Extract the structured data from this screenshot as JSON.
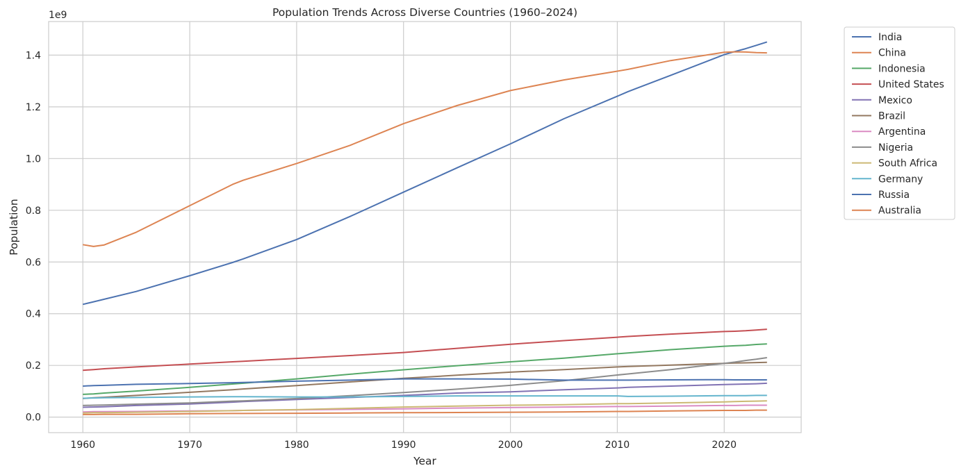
{
  "chart_data": {
    "type": "line",
    "title": "Population Trends Across Diverse Countries (1960–2024)",
    "xlabel": "Year",
    "ylabel": "Population",
    "y_scale_label": "1e9",
    "xlim": [
      1956.8,
      2027.2
    ],
    "ylim": [
      -0.06,
      1.53
    ],
    "xticks": [
      1960,
      1970,
      1980,
      1990,
      2000,
      2010,
      2020
    ],
    "yticks": [
      "0.0",
      "0.2",
      "0.4",
      "0.6",
      "0.8",
      "1.0",
      "1.2",
      "1.4"
    ],
    "grid": true,
    "legend_position": "outside upper right",
    "x": [
      1960,
      1961,
      1962,
      1965,
      1970,
      1974,
      1975,
      1980,
      1985,
      1990,
      1995,
      2000,
      2005,
      2010,
      2011,
      2015,
      2020,
      2021,
      2022,
      2023,
      2024
    ],
    "series": [
      {
        "name": "India",
        "color": "#4c72b0",
        "values": [
          0.436,
          0.446,
          0.456,
          0.486,
          0.547,
          0.598,
          0.612,
          0.687,
          0.776,
          0.87,
          0.964,
          1.057,
          1.154,
          1.241,
          1.259,
          1.322,
          1.402,
          1.414,
          1.425,
          1.438,
          1.451
        ]
      },
      {
        "name": "China",
        "color": "#dd8452",
        "values": [
          0.667,
          0.66,
          0.666,
          0.715,
          0.818,
          0.9,
          0.916,
          0.981,
          1.051,
          1.135,
          1.205,
          1.263,
          1.304,
          1.338,
          1.345,
          1.379,
          1.411,
          1.413,
          1.412,
          1.41,
          1.409
        ]
      },
      {
        "name": "Indonesia",
        "color": "#55a868",
        "values": [
          0.088,
          0.09,
          0.093,
          0.101,
          0.115,
          0.128,
          0.131,
          0.148,
          0.166,
          0.183,
          0.199,
          0.214,
          0.228,
          0.245,
          0.248,
          0.261,
          0.274,
          0.276,
          0.278,
          0.281,
          0.283
        ]
      },
      {
        "name": "United States",
        "color": "#c44e52",
        "values": [
          0.181,
          0.184,
          0.187,
          0.194,
          0.205,
          0.214,
          0.216,
          0.227,
          0.238,
          0.25,
          0.266,
          0.282,
          0.296,
          0.309,
          0.312,
          0.321,
          0.331,
          0.332,
          0.334,
          0.337,
          0.34
        ]
      },
      {
        "name": "Mexico",
        "color": "#8172b3",
        "values": [
          0.038,
          0.039,
          0.04,
          0.045,
          0.051,
          0.058,
          0.06,
          0.068,
          0.076,
          0.084,
          0.093,
          0.098,
          0.106,
          0.113,
          0.115,
          0.12,
          0.126,
          0.127,
          0.128,
          0.129,
          0.131
        ]
      },
      {
        "name": "Brazil",
        "color": "#937860",
        "values": [
          0.072,
          0.075,
          0.077,
          0.084,
          0.096,
          0.106,
          0.109,
          0.122,
          0.136,
          0.15,
          0.162,
          0.174,
          0.184,
          0.194,
          0.196,
          0.201,
          0.208,
          0.209,
          0.21,
          0.211,
          0.212
        ]
      },
      {
        "name": "Argentina",
        "color": "#da8bc3",
        "values": [
          0.02,
          0.021,
          0.021,
          0.022,
          0.024,
          0.025,
          0.026,
          0.028,
          0.03,
          0.032,
          0.035,
          0.037,
          0.039,
          0.041,
          0.041,
          0.043,
          0.045,
          0.045,
          0.046,
          0.046,
          0.046
        ]
      },
      {
        "name": "Nigeria",
        "color": "#8c8c8c",
        "values": [
          0.045,
          0.046,
          0.047,
          0.05,
          0.055,
          0.062,
          0.063,
          0.072,
          0.083,
          0.095,
          0.108,
          0.123,
          0.141,
          0.163,
          0.167,
          0.184,
          0.208,
          0.213,
          0.219,
          0.224,
          0.23
        ]
      },
      {
        "name": "South Africa",
        "color": "#ccb974",
        "values": [
          0.016,
          0.017,
          0.017,
          0.019,
          0.022,
          0.025,
          0.026,
          0.029,
          0.034,
          0.039,
          0.043,
          0.046,
          0.048,
          0.052,
          0.052,
          0.055,
          0.059,
          0.06,
          0.061,
          0.062,
          0.063
        ]
      },
      {
        "name": "Germany",
        "color": "#64b5cd",
        "values": [
          0.073,
          0.074,
          0.075,
          0.076,
          0.078,
          0.079,
          0.079,
          0.078,
          0.078,
          0.08,
          0.082,
          0.082,
          0.082,
          0.082,
          0.08,
          0.081,
          0.083,
          0.083,
          0.083,
          0.084,
          0.084
        ]
      },
      {
        "name": "Russia",
        "color": "#4c72b0",
        "values": [
          0.12,
          0.122,
          0.123,
          0.127,
          0.13,
          0.133,
          0.134,
          0.139,
          0.143,
          0.148,
          0.148,
          0.147,
          0.143,
          0.143,
          0.143,
          0.144,
          0.145,
          0.144,
          0.144,
          0.144,
          0.144
        ]
      },
      {
        "name": "Australia",
        "color": "#dd8452",
        "values": [
          0.01,
          0.01,
          0.011,
          0.011,
          0.013,
          0.014,
          0.014,
          0.015,
          0.016,
          0.017,
          0.018,
          0.019,
          0.02,
          0.022,
          0.022,
          0.024,
          0.026,
          0.026,
          0.026,
          0.027,
          0.027
        ]
      }
    ]
  }
}
